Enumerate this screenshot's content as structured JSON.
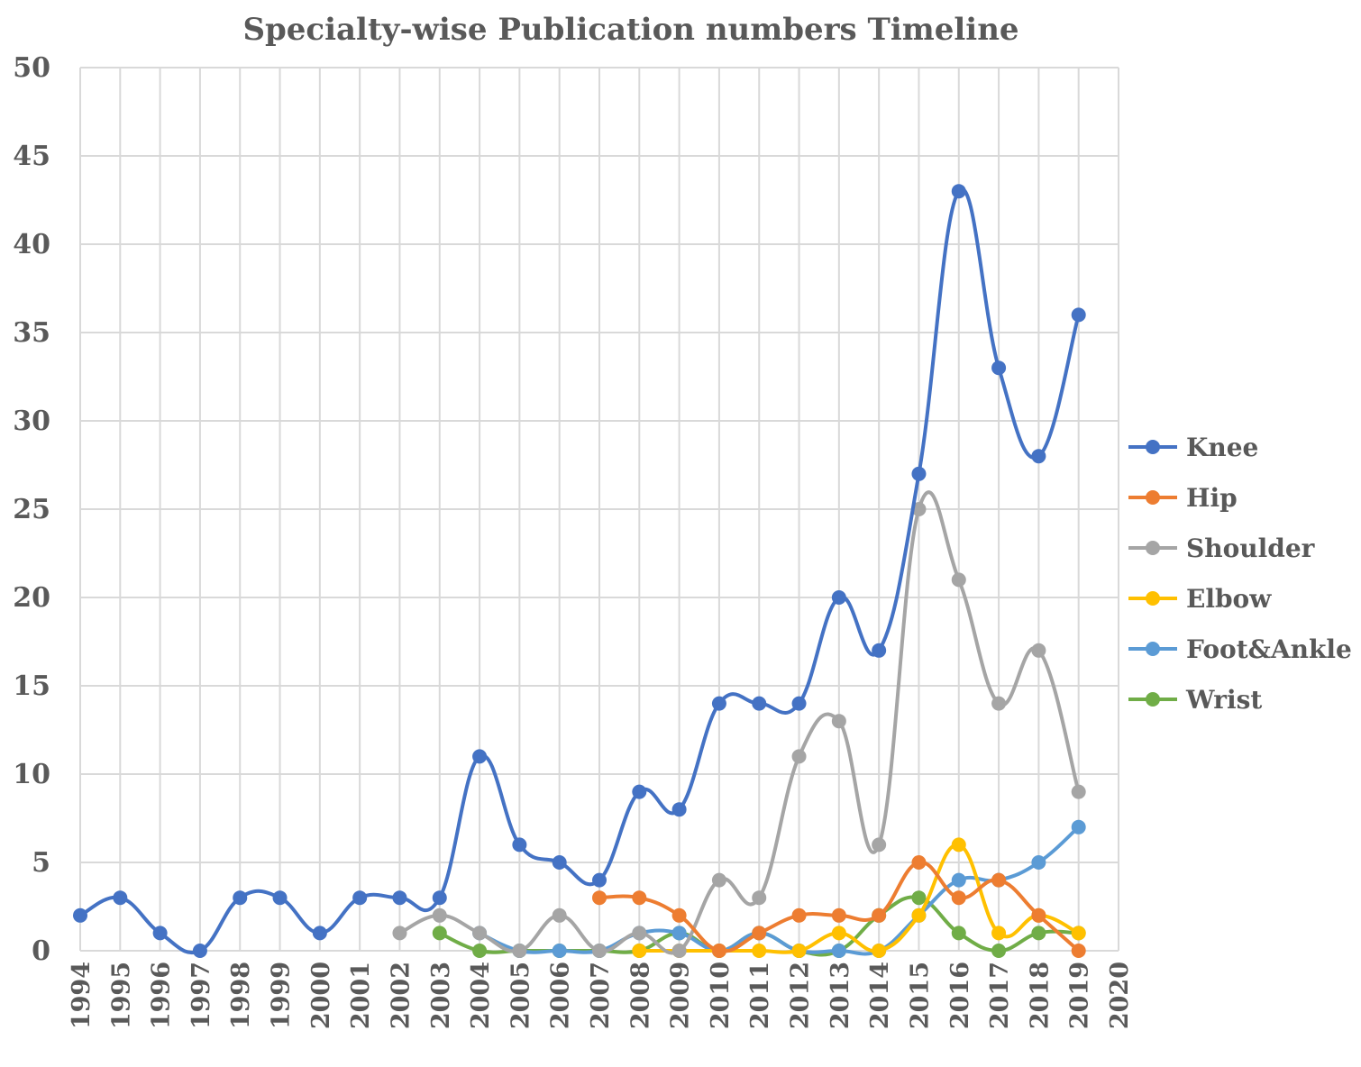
{
  "chart_data": {
    "type": "line",
    "title": "Specialty-wise Publication numbers Timeline",
    "xlabel": "",
    "ylabel": "",
    "x": [
      1994,
      1995,
      1996,
      1997,
      1998,
      1999,
      2000,
      2001,
      2002,
      2003,
      2004,
      2005,
      2006,
      2007,
      2008,
      2009,
      2010,
      2011,
      2012,
      2013,
      2014,
      2015,
      2016,
      2017,
      2018,
      2019
    ],
    "x_ticks": [
      "1994",
      "1995",
      "1996",
      "1997",
      "1998",
      "1999",
      "2000",
      "2001",
      "2002",
      "2003",
      "2004",
      "2005",
      "2006",
      "2007",
      "2008",
      "2009",
      "2010",
      "2011",
      "2012",
      "2013",
      "2014",
      "2015",
      "2016",
      "2017",
      "2018",
      "2019",
      "2020"
    ],
    "xlim": [
      1994,
      2020
    ],
    "ylim": [
      0,
      50
    ],
    "y_ticks": [
      "0",
      "5",
      "10",
      "15",
      "20",
      "25",
      "30",
      "35",
      "40",
      "45",
      "50"
    ],
    "grid": true,
    "smooth": true,
    "legend_position": "right",
    "series": [
      {
        "name": "Knee",
        "color": "#4472c4",
        "values": [
          2,
          3,
          1,
          0,
          3,
          3,
          1,
          3,
          3,
          3,
          11,
          6,
          5,
          4,
          9,
          8,
          14,
          14,
          14,
          20,
          17,
          27,
          43,
          33,
          28,
          36
        ]
      },
      {
        "name": "Hip",
        "color": "#ed7d31",
        "values": [
          null,
          null,
          null,
          null,
          null,
          null,
          null,
          null,
          null,
          null,
          null,
          null,
          null,
          3,
          3,
          2,
          0,
          1,
          2,
          2,
          2,
          5,
          3,
          4,
          2,
          0
        ]
      },
      {
        "name": "Shoulder",
        "color": "#a5a5a5",
        "values": [
          null,
          null,
          null,
          null,
          null,
          null,
          null,
          null,
          1,
          2,
          1,
          0,
          2,
          0,
          1,
          0,
          4,
          3,
          11,
          13,
          6,
          25,
          21,
          14,
          17,
          9
        ]
      },
      {
        "name": "Elbow",
        "color": "#ffc000",
        "values": [
          null,
          null,
          null,
          null,
          null,
          null,
          null,
          null,
          null,
          null,
          null,
          null,
          null,
          null,
          0,
          0,
          0,
          0,
          0,
          1,
          0,
          2,
          6,
          1,
          2,
          1
        ]
      },
      {
        "name": "Foot&Ankle",
        "color": "#5b9bd5",
        "values": [
          null,
          null,
          null,
          null,
          null,
          null,
          null,
          null,
          null,
          null,
          1,
          0,
          0,
          0,
          1,
          1,
          0,
          1,
          0,
          0,
          0,
          2,
          4,
          4,
          5,
          7
        ]
      },
      {
        "name": "Wrist",
        "color": "#70ad47",
        "values": [
          null,
          null,
          null,
          null,
          null,
          null,
          null,
          null,
          null,
          1,
          0,
          0,
          0,
          0,
          0,
          1,
          0,
          1,
          0,
          0,
          2,
          3,
          1,
          0,
          1,
          1
        ]
      }
    ]
  }
}
